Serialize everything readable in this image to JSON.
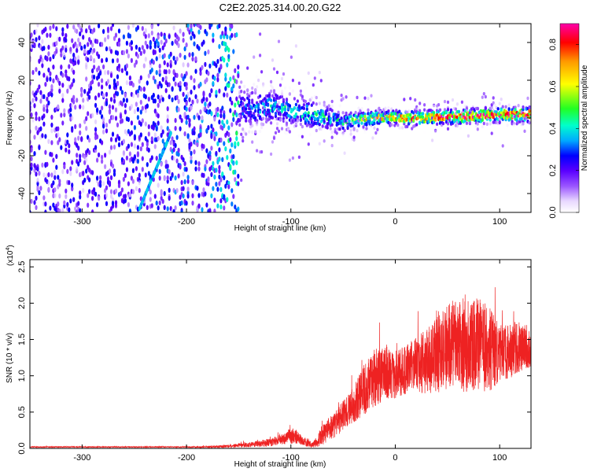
{
  "title": "C2E2.2025.314.00.20.G22",
  "colors": {
    "snr_line": "#ee2222",
    "axis": "#000000",
    "background": "#ffffff"
  },
  "chart_data": [
    {
      "type": "heatmap",
      "name": "spectrogram",
      "xlabel": "Height of straight line (km)",
      "ylabel": "Frequency (Hz)",
      "xlim": [
        -350,
        130
      ],
      "ylim": [
        -50,
        50
      ],
      "xticks": [
        -300,
        -200,
        -100,
        0,
        100
      ],
      "yticks": [
        -40,
        -20,
        0,
        20,
        40
      ],
      "xtick_labels": [
        "-300",
        "-200",
        "-100",
        "0",
        "100"
      ],
      "ytick_labels": [
        "-40",
        "-20",
        "0",
        "20",
        "40"
      ],
      "colorbar": {
        "label": "Normalized spectral amplitude",
        "range": [
          0,
          0.9
        ],
        "ticks": [
          0.0,
          0.2,
          0.4,
          0.6,
          0.8
        ],
        "tick_labels": [
          "0.0",
          "0.2",
          "0.4",
          "0.6",
          "0.8"
        ]
      },
      "description_points": [
        {
          "x": -300,
          "center_hz": 0,
          "spread_hz": 50,
          "amp": 0.15
        },
        {
          "x": -180,
          "center_hz": 3,
          "spread_hz": 20,
          "amp": 0.2
        },
        {
          "x": -120,
          "center_hz": 6,
          "spread_hz": 12,
          "amp": 0.35
        },
        {
          "x": -80,
          "center_hz": 2,
          "spread_hz": 10,
          "amp": 0.4
        },
        {
          "x": -50,
          "center_hz": -2,
          "spread_hz": 7,
          "amp": 0.4
        },
        {
          "x": -20,
          "center_hz": 0,
          "spread_hz": 5,
          "amp": 0.6
        },
        {
          "x": 20,
          "center_hz": 0,
          "spread_hz": 5,
          "amp": 0.7
        },
        {
          "x": 70,
          "center_hz": 1,
          "spread_hz": 5,
          "amp": 0.8
        },
        {
          "x": 130,
          "center_hz": 2,
          "spread_hz": 5,
          "amp": 0.75
        }
      ],
      "streak": {
        "x_start": -245,
        "x_end": -215,
        "hz_start": -48,
        "hz_end": -8,
        "amp": 0.3
      }
    },
    {
      "type": "line",
      "name": "snr",
      "xlabel": "Height of straight line (km)",
      "ylabel": "SNR (10 * v/v)",
      "scale_label": "(x10",
      "scale_exponent": "4",
      "scale_suffix": ")",
      "xlim": [
        -350,
        130
      ],
      "ylim": [
        0,
        2.6
      ],
      "xticks": [
        -300,
        -200,
        -100,
        0,
        100
      ],
      "yticks": [
        0.0,
        0.5,
        1.0,
        1.5,
        2.0,
        2.5
      ],
      "xtick_labels": [
        "-300",
        "-200",
        "-100",
        "0",
        "100"
      ],
      "ytick_labels": [
        "0.0",
        "0.5",
        "1.0",
        "1.5",
        "2.0",
        "2.5"
      ],
      "series": [
        {
          "name": "SNR",
          "x": [
            -350,
            -300,
            -250,
            -200,
            -180,
            -160,
            -140,
            -120,
            -110,
            -100,
            -95,
            -90,
            -85,
            -80,
            -75,
            -70,
            -60,
            -50,
            -40,
            -30,
            -20,
            -10,
            0,
            10,
            20,
            30,
            40,
            50,
            60,
            70,
            80,
            90,
            100,
            110,
            120,
            130
          ],
          "mean": [
            0.02,
            0.02,
            0.02,
            0.02,
            0.02,
            0.03,
            0.05,
            0.08,
            0.12,
            0.17,
            0.15,
            0.12,
            0.08,
            0.04,
            0.1,
            0.18,
            0.3,
            0.45,
            0.6,
            0.8,
            0.95,
            1.05,
            1.0,
            1.1,
            1.15,
            1.2,
            1.3,
            1.4,
            1.45,
            1.4,
            1.45,
            1.35,
            1.3,
            1.35,
            1.4,
            1.4
          ],
          "amplitude": [
            0.01,
            0.01,
            0.01,
            0.01,
            0.02,
            0.03,
            0.05,
            0.08,
            0.1,
            0.15,
            0.15,
            0.1,
            0.08,
            0.05,
            0.12,
            0.2,
            0.25,
            0.3,
            0.35,
            0.5,
            0.6,
            0.5,
            0.5,
            0.5,
            0.55,
            0.65,
            0.8,
            0.9,
            0.9,
            0.95,
            0.9,
            0.85,
            0.6,
            0.55,
            0.5,
            0.4
          ]
        }
      ]
    }
  ]
}
